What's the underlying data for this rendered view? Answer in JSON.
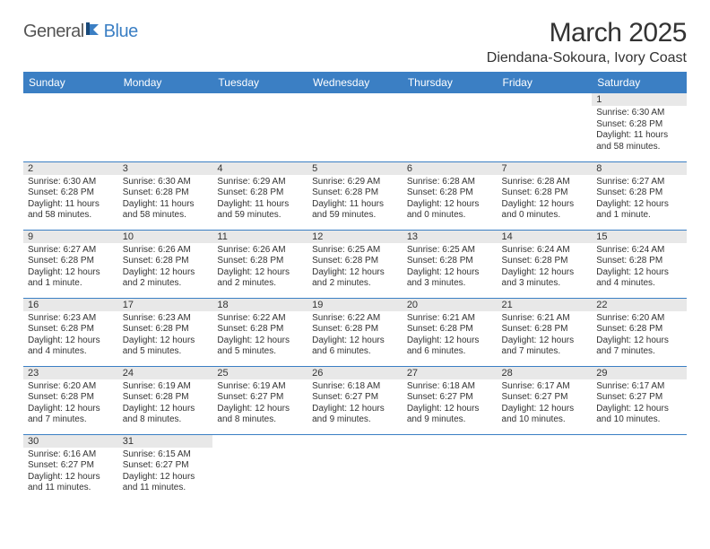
{
  "logo": {
    "text1": "General",
    "text2": "Blue"
  },
  "title": "March 2025",
  "location": "Diendana-Sokoura, Ivory Coast",
  "colors": {
    "header_bg": "#3b7fc4",
    "daynum_bg": "#e8e8e8",
    "row_border": "#3b7fc4"
  },
  "dayNames": [
    "Sunday",
    "Monday",
    "Tuesday",
    "Wednesday",
    "Thursday",
    "Friday",
    "Saturday"
  ],
  "weeks": [
    [
      null,
      null,
      null,
      null,
      null,
      null,
      {
        "n": "1",
        "sr": "Sunrise: 6:30 AM",
        "ss": "Sunset: 6:28 PM",
        "dl": "Daylight: 11 hours and 58 minutes."
      }
    ],
    [
      {
        "n": "2",
        "sr": "Sunrise: 6:30 AM",
        "ss": "Sunset: 6:28 PM",
        "dl": "Daylight: 11 hours and 58 minutes."
      },
      {
        "n": "3",
        "sr": "Sunrise: 6:30 AM",
        "ss": "Sunset: 6:28 PM",
        "dl": "Daylight: 11 hours and 58 minutes."
      },
      {
        "n": "4",
        "sr": "Sunrise: 6:29 AM",
        "ss": "Sunset: 6:28 PM",
        "dl": "Daylight: 11 hours and 59 minutes."
      },
      {
        "n": "5",
        "sr": "Sunrise: 6:29 AM",
        "ss": "Sunset: 6:28 PM",
        "dl": "Daylight: 11 hours and 59 minutes."
      },
      {
        "n": "6",
        "sr": "Sunrise: 6:28 AM",
        "ss": "Sunset: 6:28 PM",
        "dl": "Daylight: 12 hours and 0 minutes."
      },
      {
        "n": "7",
        "sr": "Sunrise: 6:28 AM",
        "ss": "Sunset: 6:28 PM",
        "dl": "Daylight: 12 hours and 0 minutes."
      },
      {
        "n": "8",
        "sr": "Sunrise: 6:27 AM",
        "ss": "Sunset: 6:28 PM",
        "dl": "Daylight: 12 hours and 1 minute."
      }
    ],
    [
      {
        "n": "9",
        "sr": "Sunrise: 6:27 AM",
        "ss": "Sunset: 6:28 PM",
        "dl": "Daylight: 12 hours and 1 minute."
      },
      {
        "n": "10",
        "sr": "Sunrise: 6:26 AM",
        "ss": "Sunset: 6:28 PM",
        "dl": "Daylight: 12 hours and 2 minutes."
      },
      {
        "n": "11",
        "sr": "Sunrise: 6:26 AM",
        "ss": "Sunset: 6:28 PM",
        "dl": "Daylight: 12 hours and 2 minutes."
      },
      {
        "n": "12",
        "sr": "Sunrise: 6:25 AM",
        "ss": "Sunset: 6:28 PM",
        "dl": "Daylight: 12 hours and 2 minutes."
      },
      {
        "n": "13",
        "sr": "Sunrise: 6:25 AM",
        "ss": "Sunset: 6:28 PM",
        "dl": "Daylight: 12 hours and 3 minutes."
      },
      {
        "n": "14",
        "sr": "Sunrise: 6:24 AM",
        "ss": "Sunset: 6:28 PM",
        "dl": "Daylight: 12 hours and 3 minutes."
      },
      {
        "n": "15",
        "sr": "Sunrise: 6:24 AM",
        "ss": "Sunset: 6:28 PM",
        "dl": "Daylight: 12 hours and 4 minutes."
      }
    ],
    [
      {
        "n": "16",
        "sr": "Sunrise: 6:23 AM",
        "ss": "Sunset: 6:28 PM",
        "dl": "Daylight: 12 hours and 4 minutes."
      },
      {
        "n": "17",
        "sr": "Sunrise: 6:23 AM",
        "ss": "Sunset: 6:28 PM",
        "dl": "Daylight: 12 hours and 5 minutes."
      },
      {
        "n": "18",
        "sr": "Sunrise: 6:22 AM",
        "ss": "Sunset: 6:28 PM",
        "dl": "Daylight: 12 hours and 5 minutes."
      },
      {
        "n": "19",
        "sr": "Sunrise: 6:22 AM",
        "ss": "Sunset: 6:28 PM",
        "dl": "Daylight: 12 hours and 6 minutes."
      },
      {
        "n": "20",
        "sr": "Sunrise: 6:21 AM",
        "ss": "Sunset: 6:28 PM",
        "dl": "Daylight: 12 hours and 6 minutes."
      },
      {
        "n": "21",
        "sr": "Sunrise: 6:21 AM",
        "ss": "Sunset: 6:28 PM",
        "dl": "Daylight: 12 hours and 7 minutes."
      },
      {
        "n": "22",
        "sr": "Sunrise: 6:20 AM",
        "ss": "Sunset: 6:28 PM",
        "dl": "Daylight: 12 hours and 7 minutes."
      }
    ],
    [
      {
        "n": "23",
        "sr": "Sunrise: 6:20 AM",
        "ss": "Sunset: 6:28 PM",
        "dl": "Daylight: 12 hours and 7 minutes."
      },
      {
        "n": "24",
        "sr": "Sunrise: 6:19 AM",
        "ss": "Sunset: 6:28 PM",
        "dl": "Daylight: 12 hours and 8 minutes."
      },
      {
        "n": "25",
        "sr": "Sunrise: 6:19 AM",
        "ss": "Sunset: 6:27 PM",
        "dl": "Daylight: 12 hours and 8 minutes."
      },
      {
        "n": "26",
        "sr": "Sunrise: 6:18 AM",
        "ss": "Sunset: 6:27 PM",
        "dl": "Daylight: 12 hours and 9 minutes."
      },
      {
        "n": "27",
        "sr": "Sunrise: 6:18 AM",
        "ss": "Sunset: 6:27 PM",
        "dl": "Daylight: 12 hours and 9 minutes."
      },
      {
        "n": "28",
        "sr": "Sunrise: 6:17 AM",
        "ss": "Sunset: 6:27 PM",
        "dl": "Daylight: 12 hours and 10 minutes."
      },
      {
        "n": "29",
        "sr": "Sunrise: 6:17 AM",
        "ss": "Sunset: 6:27 PM",
        "dl": "Daylight: 12 hours and 10 minutes."
      }
    ],
    [
      {
        "n": "30",
        "sr": "Sunrise: 6:16 AM",
        "ss": "Sunset: 6:27 PM",
        "dl": "Daylight: 12 hours and 11 minutes."
      },
      {
        "n": "31",
        "sr": "Sunrise: 6:15 AM",
        "ss": "Sunset: 6:27 PM",
        "dl": "Daylight: 12 hours and 11 minutes."
      },
      null,
      null,
      null,
      null,
      null
    ]
  ]
}
